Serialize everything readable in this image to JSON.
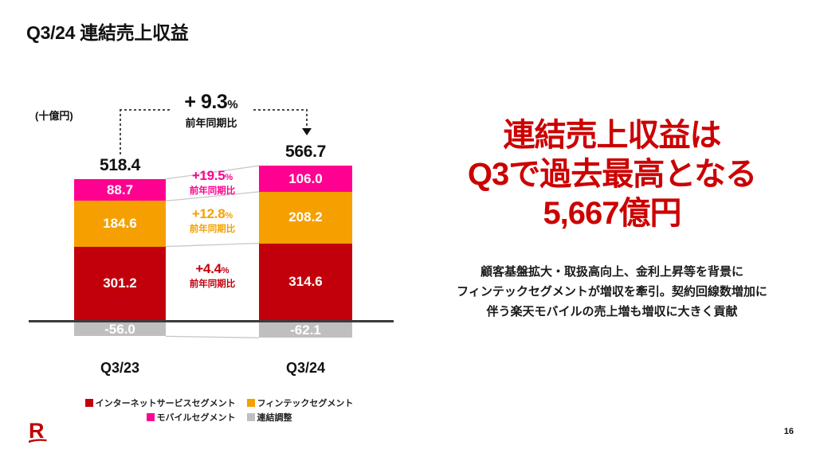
{
  "slide": {
    "title": "Q3/24 連結売上収益",
    "page_number": "16"
  },
  "chart_data": {
    "type": "bar",
    "stacked": true,
    "unit_label": "(十億円)",
    "categories": [
      "Q3/23",
      "Q3/24"
    ],
    "series": [
      {
        "name": "インターネットサービスセグメント",
        "color": "#C2000B",
        "values": [
          301.2,
          314.6
        ],
        "labels": [
          "301.2",
          "314.6"
        ]
      },
      {
        "name": "フィンテックセグメント",
        "color": "#F5A000",
        "values": [
          184.6,
          208.2
        ],
        "labels": [
          "184.6",
          "208.2"
        ]
      },
      {
        "name": "モバイルセグメント",
        "color": "#FF0090",
        "values": [
          88.7,
          106.0
        ],
        "labels": [
          "88.7",
          "106.0"
        ]
      },
      {
        "name": "連結調整",
        "color": "#BFBFBF",
        "values": [
          -56.0,
          -62.1
        ],
        "labels": [
          "-56.0",
          "-62.1"
        ]
      }
    ],
    "totals": [
      "518.4",
      "566.7"
    ],
    "yoy_total": {
      "value": "+ 9.3",
      "unit": "%",
      "caption": "前年同期比"
    },
    "yoy_segments": [
      {
        "value": "+19.5",
        "unit": "%",
        "caption": "前年同期比",
        "series_index": 2
      },
      {
        "value": "+12.8",
        "unit": "%",
        "caption": "前年同期比",
        "series_index": 1
      },
      {
        "value": "+4.4",
        "unit": "%",
        "caption": "前年同期比",
        "series_index": 0
      }
    ],
    "legend_position": "bottom",
    "baseline": true
  },
  "message": {
    "headline_color": "#CC0000",
    "headline_lines": [
      "連結売上収益は",
      "Q3で過去最高となる",
      "5,667億円"
    ],
    "body_lines": [
      "顧客基盤拡大・取扱高向上、金利上昇等を背景に",
      "フィンテックセグメントが増収を牽引。契約回線数増加に",
      "伴う楽天モバイルの売上増も増収に大きく貢献"
    ]
  }
}
